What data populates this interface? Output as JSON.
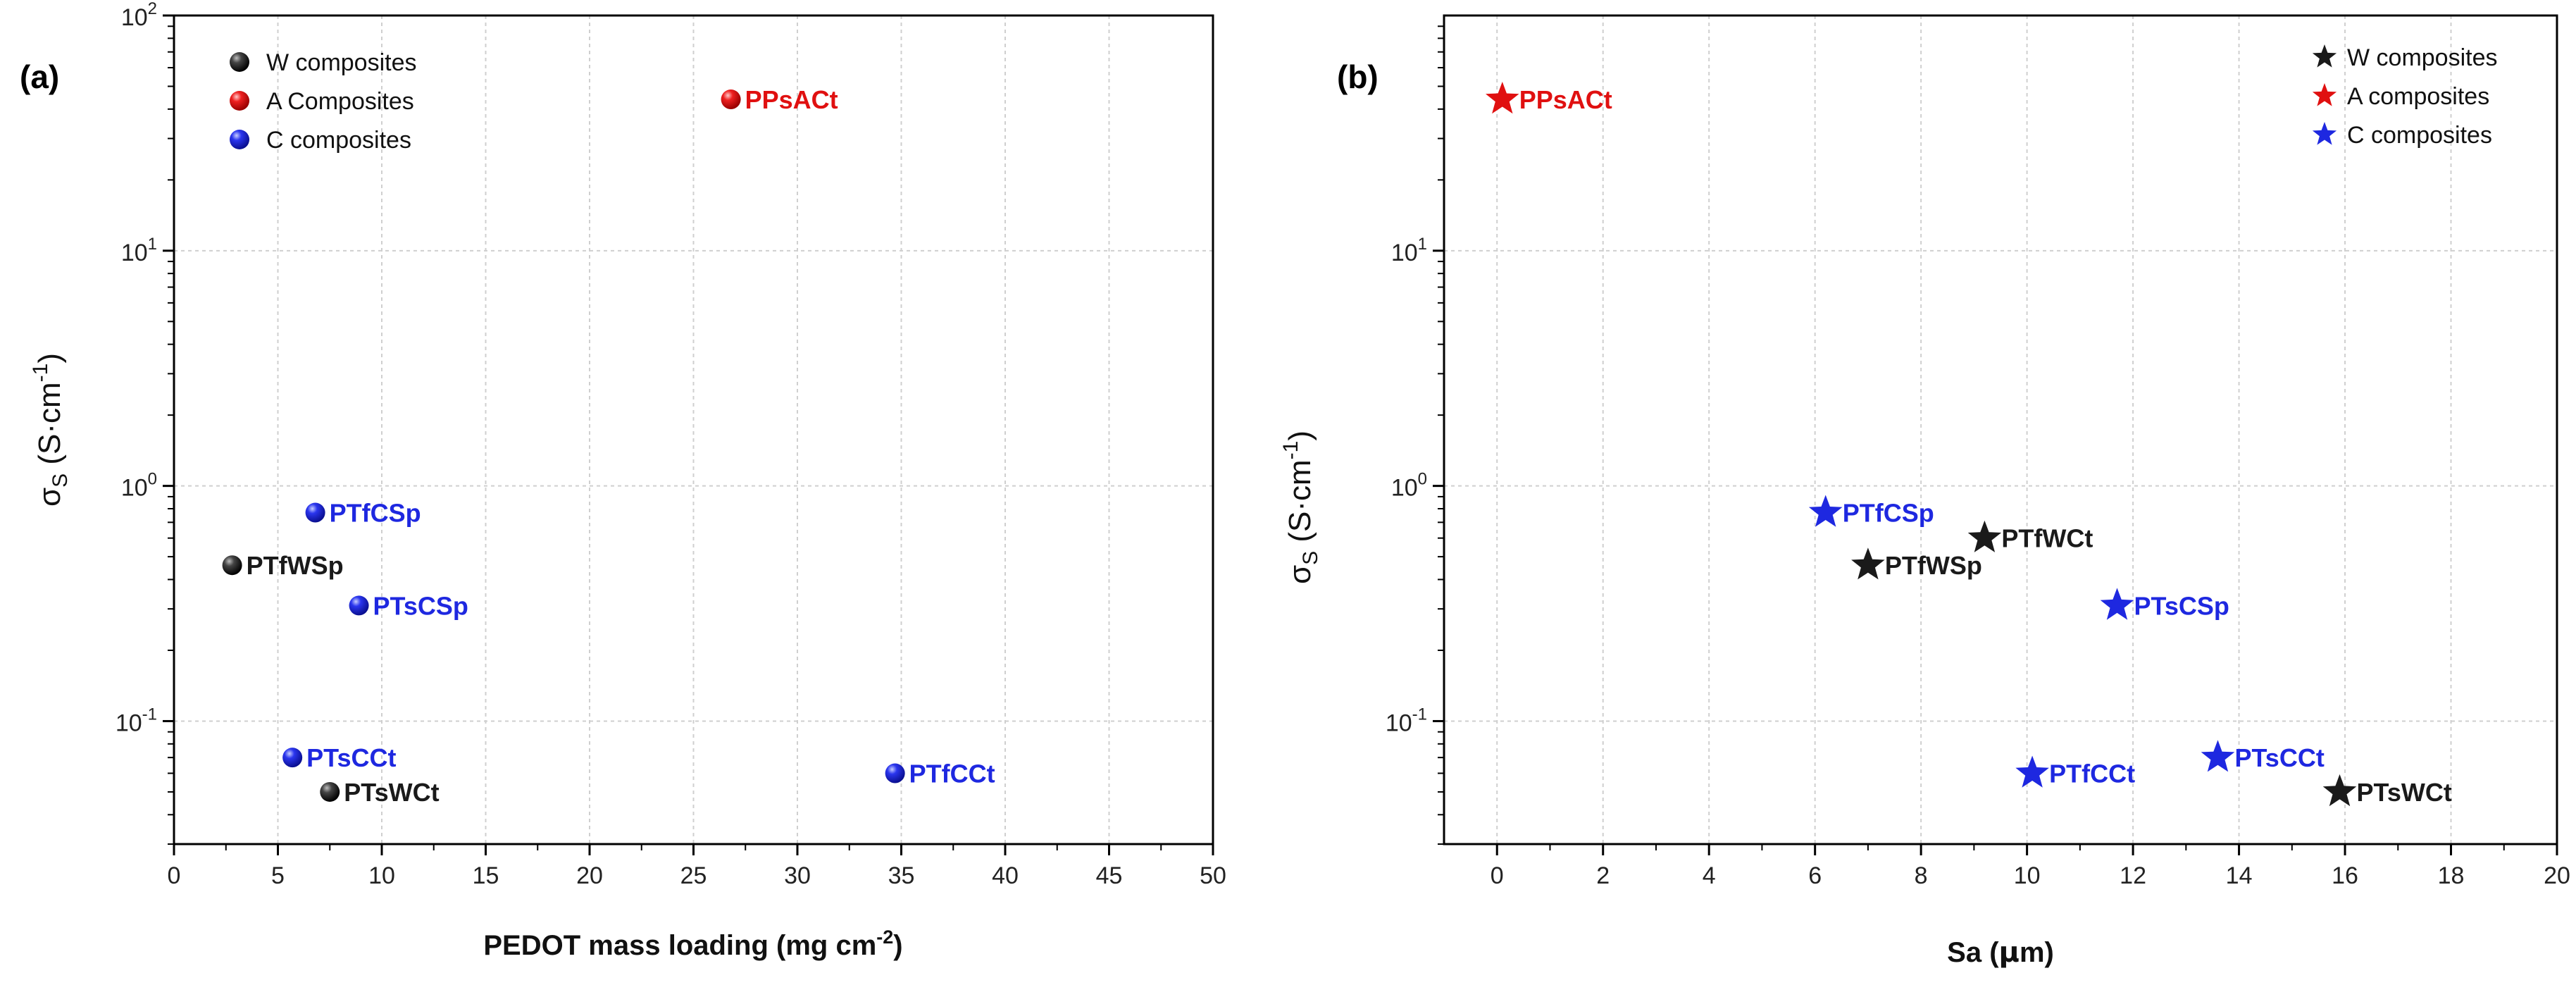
{
  "chart_data": [
    {
      "type": "scatter",
      "panel_label": "(a)",
      "marker": "sphere",
      "xlabel_main": "PEDOT mass loading (mg cm",
      "xlabel_sup": "-2",
      "xlabel_end": ")",
      "ylabel": {
        "sigma": "σ",
        "sub": "S",
        "main": " (S·cm",
        "sup": "-1",
        "end": ")"
      },
      "xlim": [
        0,
        50
      ],
      "ylim": [
        0.03,
        100
      ],
      "xscale": "linear",
      "yscale": "log",
      "xticks": [
        0,
        5,
        10,
        15,
        20,
        25,
        30,
        35,
        40,
        45,
        50
      ],
      "xtick_labels": [
        "0",
        "5",
        "10",
        "15",
        "20",
        "25",
        "30",
        "35",
        "40",
        "45",
        "50"
      ],
      "yticks": [
        0.1,
        1,
        10,
        100
      ],
      "ytick_labels": [
        {
          "base": "10",
          "exp": "-1"
        },
        {
          "base": "10",
          "exp": "0"
        },
        {
          "base": "10",
          "exp": "1"
        },
        {
          "base": "10",
          "exp": "2"
        }
      ],
      "grid": true,
      "legend_position": "top-left",
      "series": [
        {
          "name": "W composites",
          "color": "#1a1a1a",
          "points": [
            {
              "label": "PTfWSp",
              "x": 2.8,
              "y": 0.46
            },
            {
              "label": "PTsWCt",
              "x": 7.5,
              "y": 0.05
            }
          ]
        },
        {
          "name": "A Composites",
          "color": "#e01010",
          "points": [
            {
              "label": "PPsACt",
              "x": 26.8,
              "y": 44
            }
          ]
        },
        {
          "name": "C composites",
          "color": "#1e28e0",
          "points": [
            {
              "label": "PTfCSp",
              "x": 6.8,
              "y": 0.77
            },
            {
              "label": "PTsCSp",
              "x": 8.9,
              "y": 0.31
            },
            {
              "label": "PTsCCt",
              "x": 5.7,
              "y": 0.07
            },
            {
              "label": "PTfCCt",
              "x": 34.7,
              "y": 0.06
            }
          ]
        }
      ]
    },
    {
      "type": "scatter",
      "panel_label": "(b)",
      "marker": "star",
      "xlabel_main": "Sa (",
      "xlabel_mu": "μ",
      "xlabel_end": "m)",
      "ylabel": {
        "sigma": "σ",
        "sub": "S",
        "main": " (S·cm",
        "sup": "-1",
        "end": ")"
      },
      "xlim": [
        -1,
        20
      ],
      "ylim": [
        0.03,
        100
      ],
      "xscale": "linear",
      "yscale": "log",
      "xticks": [
        0,
        2,
        4,
        6,
        8,
        10,
        12,
        14,
        16,
        18,
        20
      ],
      "xtick_labels": [
        "0",
        "2",
        "4",
        "6",
        "8",
        "10",
        "12",
        "14",
        "16",
        "18",
        "20"
      ],
      "yticks": [
        0.1,
        1,
        10
      ],
      "ytick_labels": [
        {
          "base": "10",
          "exp": "-1"
        },
        {
          "base": "10",
          "exp": "0"
        },
        {
          "base": "10",
          "exp": "1"
        }
      ],
      "grid": true,
      "legend_position": "top-right",
      "series": [
        {
          "name": "W composites",
          "color": "#1a1a1a",
          "points": [
            {
              "label": "PTfWCt",
              "x": 9.2,
              "y": 0.6
            },
            {
              "label": "PTfWSp",
              "x": 7.0,
              "y": 0.46
            },
            {
              "label": "PTsWCt",
              "x": 15.9,
              "y": 0.05
            }
          ]
        },
        {
          "name": "A composites",
          "color": "#e01010",
          "points": [
            {
              "label": "PPsACt",
              "x": 0.1,
              "y": 44
            }
          ]
        },
        {
          "name": "C composites",
          "color": "#1e28e0",
          "points": [
            {
              "label": "PTfCSp",
              "x": 6.2,
              "y": 0.77
            },
            {
              "label": "PTsCSp",
              "x": 11.7,
              "y": 0.31
            },
            {
              "label": "PTfCCt",
              "x": 10.1,
              "y": 0.06
            },
            {
              "label": "PTsCCt",
              "x": 13.6,
              "y": 0.07
            }
          ]
        }
      ]
    }
  ]
}
